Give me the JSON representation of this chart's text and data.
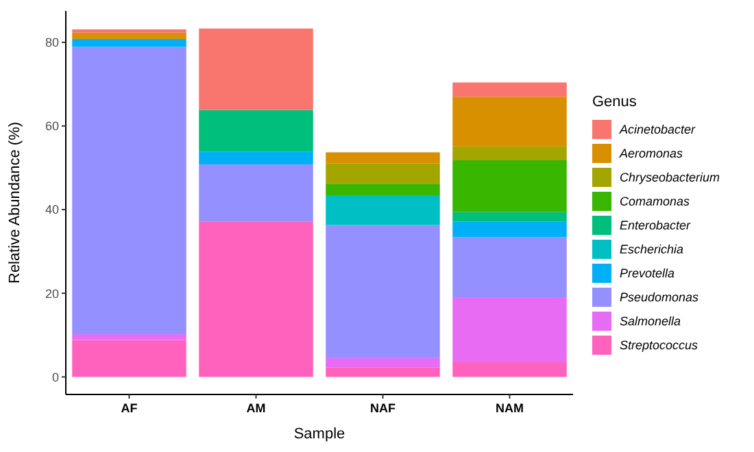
{
  "chart_data": {
    "type": "bar",
    "stacked": true,
    "xlabel": "Sample",
    "ylabel": "Relative Abundance (%)",
    "legend_title": "Genus",
    "legend": "right",
    "grid": false,
    "categories": [
      "AF",
      "AM",
      "NAF",
      "NAM"
    ],
    "ylim": [
      -4.2,
      87.5
    ],
    "yticks": [
      0,
      20,
      40,
      60,
      80
    ],
    "series": [
      {
        "name": "Streptococcus",
        "color": "#ff62bc",
        "values": [
          8.8,
          37.1,
          2.3,
          3.5
        ]
      },
      {
        "name": "Salmonella",
        "color": "#e76bf3",
        "values": [
          1.4,
          null,
          2.2,
          15.4
        ]
      },
      {
        "name": "Pseudomonas",
        "color": "#9590ff",
        "values": [
          68.7,
          13.7,
          31.8,
          14.5
        ]
      },
      {
        "name": "Prevotella",
        "color": "#00b0f6",
        "values": [
          1.9,
          3.1,
          null,
          3.7
        ]
      },
      {
        "name": "Escherichia",
        "color": "#00bfc4",
        "values": [
          null,
          null,
          7.0,
          null
        ]
      },
      {
        "name": "Enterobacter",
        "color": "#00bf7d",
        "values": [
          null,
          9.9,
          null,
          2.3
        ]
      },
      {
        "name": "Comamonas",
        "color": "#39b600",
        "values": [
          null,
          null,
          2.9,
          12.4
        ]
      },
      {
        "name": "Chryseobacterium",
        "color": "#a3a500",
        "values": [
          null,
          null,
          4.9,
          3.3
        ]
      },
      {
        "name": "Aeromonas",
        "color": "#d89000",
        "values": [
          1.5,
          null,
          2.6,
          11.9
        ]
      },
      {
        "name": "Acinetobacter",
        "color": "#f8766d",
        "values": [
          0.8,
          19.5,
          null,
          3.4
        ]
      }
    ]
  }
}
